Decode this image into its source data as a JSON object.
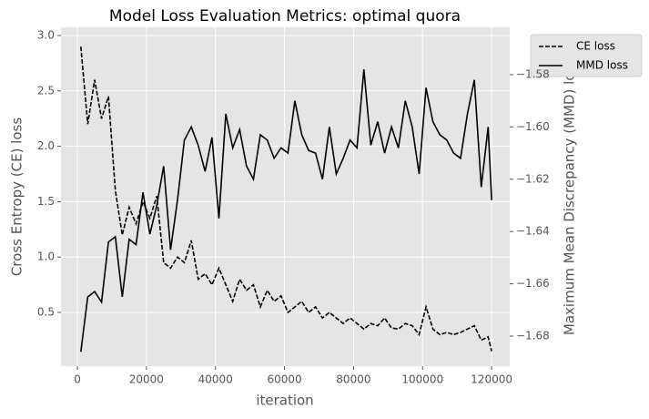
{
  "chart_data": {
    "type": "line",
    "title": "Model Loss Evaluation Metrics: optimal quora",
    "x_label": "iteration",
    "y_label": "Cross Entropy (CE) loss",
    "y2_label": "Maximum Mean Discrepancy (MMD) loss",
    "x": [
      1000,
      3000,
      5000,
      7000,
      9000,
      11000,
      13000,
      15000,
      17000,
      19000,
      21000,
      23000,
      25000,
      27000,
      29000,
      31000,
      33000,
      35000,
      37000,
      39000,
      41000,
      43000,
      45000,
      47000,
      49000,
      51000,
      53000,
      55000,
      57000,
      59000,
      61000,
      63000,
      65000,
      67000,
      69000,
      71000,
      73000,
      75000,
      77000,
      79000,
      81000,
      83000,
      85000,
      87000,
      89000,
      91000,
      93000,
      95000,
      97000,
      99000,
      101000,
      103000,
      105000,
      107000,
      109000,
      111000,
      113000,
      115000,
      117000,
      119000,
      120000
    ],
    "series": [
      {
        "name": "CE loss",
        "color": "#000000",
        "dash": true,
        "values": [
          2.9,
          2.2,
          2.6,
          2.25,
          2.45,
          1.6,
          1.2,
          1.45,
          1.3,
          1.5,
          1.35,
          1.55,
          0.95,
          0.9,
          1.0,
          0.95,
          1.15,
          0.8,
          0.85,
          0.75,
          0.9,
          0.75,
          0.6,
          0.8,
          0.7,
          0.75,
          0.55,
          0.7,
          0.6,
          0.65,
          0.5,
          0.55,
          0.6,
          0.5,
          0.55,
          0.45,
          0.5,
          0.45,
          0.4,
          0.45,
          0.4,
          0.35,
          0.4,
          0.38,
          0.45,
          0.36,
          0.35,
          0.4,
          0.38,
          0.3,
          0.55,
          0.35,
          0.3,
          0.32,
          0.3,
          0.32,
          0.35,
          0.38,
          0.25,
          0.28,
          0.15
        ]
      },
      {
        "name": "MMD loss",
        "color": "#000000",
        "dash": false,
        "axis": "y2",
        "values": [
          -1.686,
          -1.665,
          -1.663,
          -1.667,
          -1.644,
          -1.642,
          -1.665,
          -1.643,
          -1.645,
          -1.625,
          -1.641,
          -1.63,
          -1.615,
          -1.647,
          -1.628,
          -1.605,
          -1.6,
          -1.607,
          -1.617,
          -1.604,
          -1.635,
          -1.595,
          -1.608,
          -1.601,
          -1.615,
          -1.62,
          -1.603,
          -1.605,
          -1.612,
          -1.608,
          -1.61,
          -1.59,
          -1.603,
          -1.609,
          -1.61,
          -1.62,
          -1.6,
          -1.618,
          -1.612,
          -1.605,
          -1.608,
          -1.578,
          -1.607,
          -1.598,
          -1.61,
          -1.6,
          -1.608,
          -1.59,
          -1.6,
          -1.618,
          -1.585,
          -1.598,
          -1.603,
          -1.605,
          -1.61,
          -1.612,
          -1.595,
          -1.582,
          -1.623,
          -1.6,
          -1.628
        ]
      }
    ],
    "xlim": [
      -4750,
      125250
    ],
    "xticks": [
      0,
      20000,
      40000,
      60000,
      80000,
      100000,
      120000
    ],
    "ylim": [
      0.015,
      3.074
    ],
    "yticks": [
      0.5,
      {
        "value": 1.0,
        "label": "1.0"
      },
      1.5,
      {
        "value": 2.0,
        "label": "2.0"
      },
      2.5,
      {
        "value": 3.0,
        "label": "3.0"
      }
    ],
    "y2lim": [
      -1.6915,
      -1.5619
    ],
    "y2ticks": [
      {
        "value": -1.68,
        "label": "−1.68"
      },
      {
        "value": -1.66,
        "label": "−1.66"
      },
      {
        "value": -1.64,
        "label": "−1.64"
      },
      {
        "value": -1.62,
        "label": "−1.62"
      },
      {
        "value": -1.6,
        "label": "−1.60"
      },
      {
        "value": -1.58,
        "label": "−1.58"
      }
    ],
    "grid": true,
    "legend": "outside-upper-right"
  }
}
